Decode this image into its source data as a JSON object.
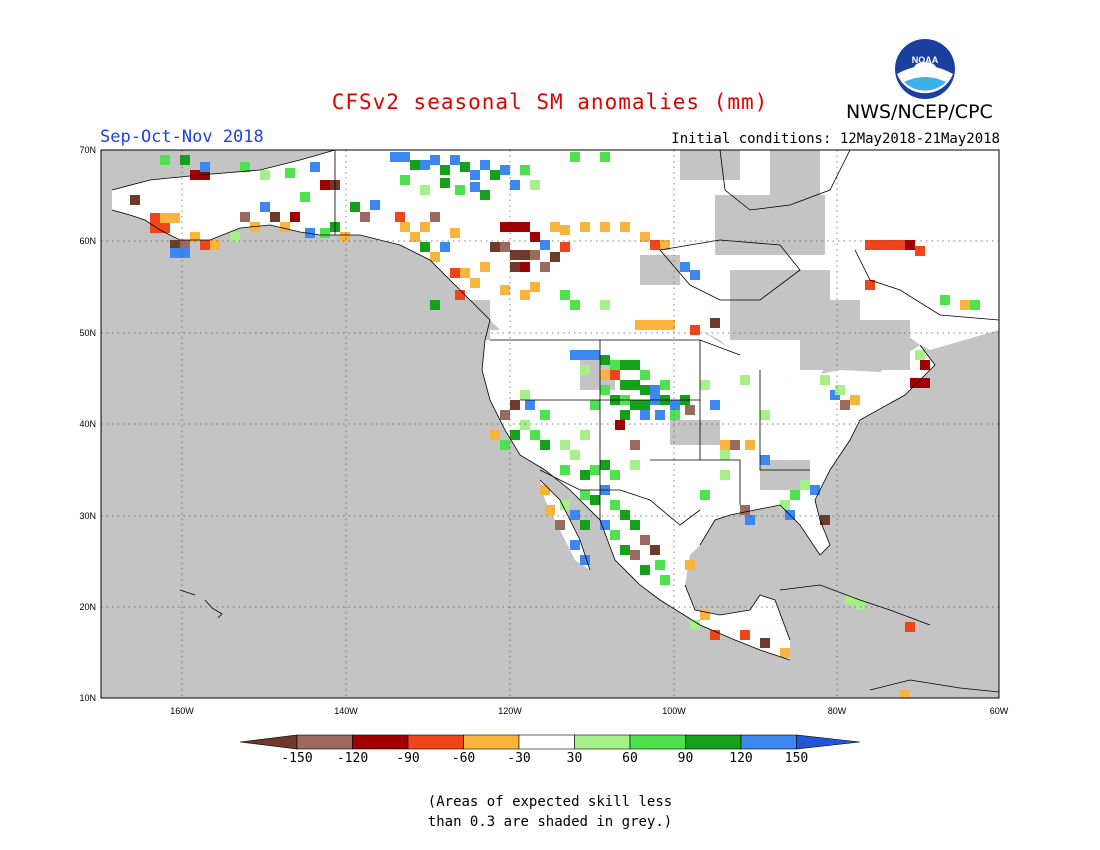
{
  "title": "CFSv2 seasonal SM anomalies (mm)",
  "season": "Sep-Oct-Nov 2018",
  "initial_conditions": "Initial conditions: 12May2018-21May2018",
  "agency": "NWS/NCEP/CPC",
  "logo_text": "NOAA",
  "lat_labels": [
    "70N",
    "60N",
    "50N",
    "40N",
    "30N",
    "20N",
    "10N"
  ],
  "lon_labels": [
    "160W",
    "140W",
    "120W",
    "100W",
    "80W",
    "60W"
  ],
  "colorbar": {
    "labels": [
      "-150",
      "-120",
      "-90",
      "-60",
      "-30",
      "30",
      "60",
      "90",
      "120",
      "150"
    ],
    "colors": [
      "#6e3a2a",
      "#9a6a5e",
      "#a00000",
      "#f0441a",
      "#f8b43c",
      "#ffffff",
      "#a6f08a",
      "#4ee24e",
      "#14a01a",
      "#3c88f0",
      "#1f57d8"
    ]
  },
  "footnote_line1": "(Areas of expected skill less",
  "footnote_line2": "than 0.3 are shaded in grey.)",
  "anomaly_colors": {
    "grey": "#c4c4c4",
    "white": "#ffffff",
    "light_green": "#a6f08a",
    "green": "#4ee24e",
    "dark_green": "#14a01a",
    "blue": "#3c88f0",
    "orange": "#f8b43c",
    "red_orange": "#f0441a",
    "dark_red": "#a00000",
    "brown": "#6e3a2a",
    "light_brown": "#9a6a5e"
  }
}
